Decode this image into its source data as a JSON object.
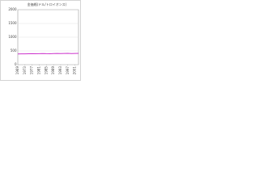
{
  "chart_data": {
    "type": "line",
    "title": "金価格(ドル/トロイオンス)",
    "x": [
      1969,
      1971,
      1973,
      1975,
      1977,
      1979,
      1981,
      1983,
      1985,
      1987,
      1989,
      1991,
      1993,
      1995,
      1997,
      1999,
      2001,
      2003
    ],
    "series": [
      {
        "name": "金価格",
        "color": "#cc33cc",
        "values": [
          390,
          395,
          392,
          398,
          400,
          396,
          402,
          405,
          400,
          398,
          403,
          407,
          404,
          408,
          410,
          406,
          409,
          412
        ]
      }
    ],
    "xlim": [
      1969,
      2003
    ],
    "xticks": [
      1969,
      1973,
      1977,
      1981,
      1985,
      1989,
      1993,
      1997,
      2001
    ],
    "ylim": [
      0,
      2000
    ],
    "yticks": [
      0,
      500,
      1000,
      1500,
      2000
    ],
    "grid": true
  }
}
